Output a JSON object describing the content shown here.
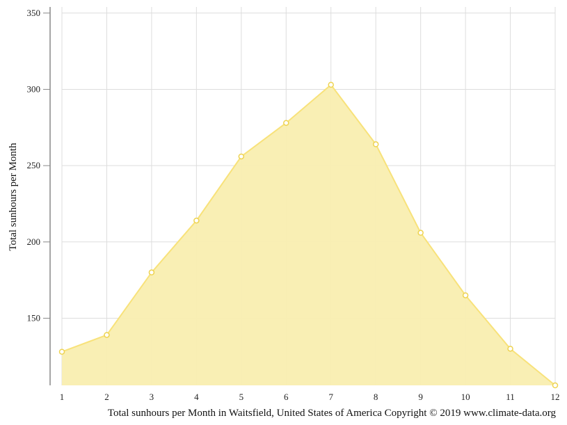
{
  "chart_data": {
    "type": "area",
    "x": [
      1,
      2,
      3,
      4,
      5,
      6,
      7,
      8,
      9,
      10,
      11,
      12
    ],
    "values": [
      128,
      139,
      180,
      214,
      256,
      278,
      303,
      264,
      206,
      165,
      130,
      106
    ],
    "ylabel": "Total sunhours per Month",
    "xlabel": "",
    "caption": "Total sunhours per Month in Waitsfield, United States of America Copyright © 2019 www.climate-data.org",
    "yticks": [
      150,
      200,
      250,
      300,
      350
    ],
    "ylim": [
      106,
      354
    ],
    "xlim": [
      1,
      12
    ],
    "grid": true,
    "legend": "none",
    "colors": {
      "fill": "#f9eeb0",
      "line": "#f8e27a",
      "marker_stroke": "#eed350",
      "marker_fill": "#ffffff",
      "grid": "#dddddd",
      "axis": "#888888"
    }
  }
}
